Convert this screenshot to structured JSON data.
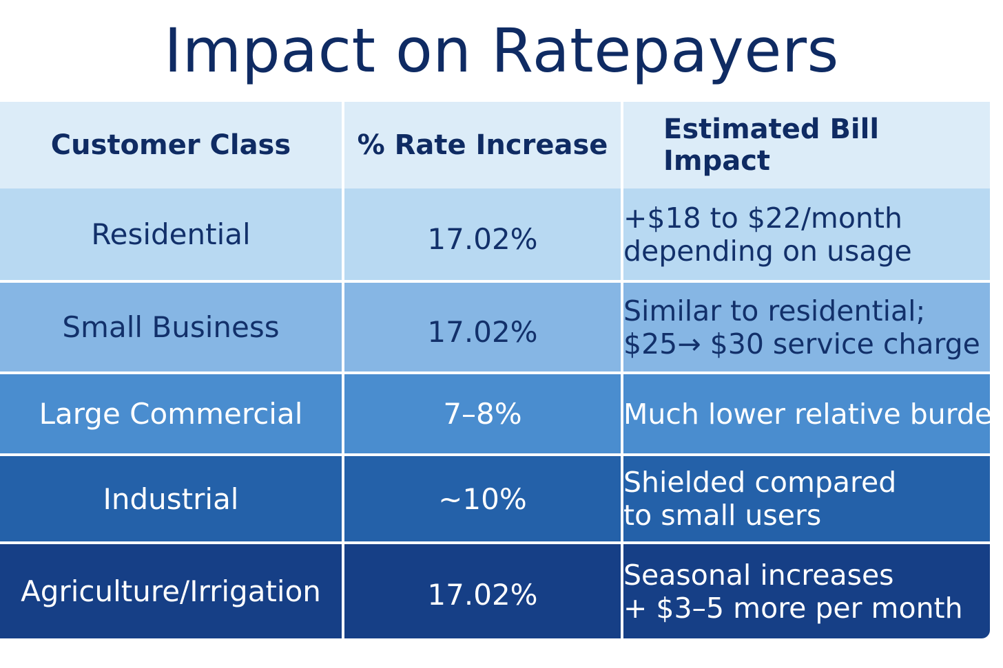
{
  "title": "Impact on Ratepayers",
  "chart_data": {
    "type": "table",
    "title": "Impact on Ratepayers",
    "columns": [
      "Customer Class",
      "% Rate Increase",
      "Estimated Bill Impact"
    ],
    "rows": [
      {
        "customer_class": "Residential",
        "rate_increase": "17.02%",
        "bill_line1": "+$18 to $22/month",
        "bill_line2": "depending on usage"
      },
      {
        "customer_class": "Small Business",
        "rate_increase": "17.02%",
        "bill_line1": "Similar to residential;",
        "bill_line2": "$25→ $30 service charge"
      },
      {
        "customer_class": "Large Commercial",
        "rate_increase": "7–8%",
        "bill_line1": "Much lower relative burden",
        "bill_line2": ""
      },
      {
        "customer_class": "Industrial",
        "rate_increase": "~10%",
        "bill_line1": "Shielded compared",
        "bill_line2": "to small users"
      },
      {
        "customer_class": "Agriculture/Irrigation",
        "rate_increase": "17.02%",
        "bill_line1": "Seasonal increases",
        "bill_line2": "+ $3–5 more per month"
      }
    ],
    "colors": {
      "header": "#dcecf8",
      "row1": "#b8d9f2",
      "row2": "#86b6e4",
      "row3": "#4a8dcf",
      "row4": "#2461a9",
      "row5": "#163f86",
      "title": "#0f2b63"
    }
  }
}
